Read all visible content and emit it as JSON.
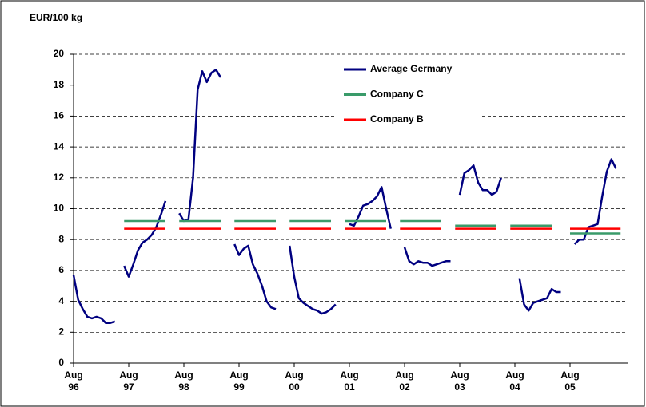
{
  "chart_data": {
    "type": "line",
    "title": "EUR/100 kg",
    "categories": [
      "Aug 96",
      null,
      null,
      null,
      null,
      null,
      null,
      null,
      null,
      null,
      null,
      null,
      "Aug 97",
      null,
      null,
      null,
      null,
      null,
      null,
      null,
      null,
      null,
      null,
      null,
      "Aug 98",
      null,
      null,
      null,
      null,
      null,
      null,
      null,
      null,
      null,
      null,
      null,
      "Aug 99",
      null,
      null,
      null,
      null,
      null,
      null,
      null,
      null,
      null,
      null,
      null,
      "Aug 00",
      null,
      null,
      null,
      null,
      null,
      null,
      null,
      null,
      null,
      null,
      null,
      "Aug 01",
      null,
      null,
      null,
      null,
      null,
      null,
      null,
      null,
      null,
      null,
      null,
      "Aug 02",
      null,
      null,
      null,
      null,
      null,
      null,
      null,
      null,
      null,
      null,
      null,
      "Aug 03",
      null,
      null,
      null,
      null,
      null,
      null,
      null,
      null,
      null,
      null,
      null,
      "Aug 04",
      null,
      null,
      null,
      null,
      null,
      null,
      null,
      null,
      null,
      null,
      null,
      "Aug 05",
      null,
      null,
      null,
      null,
      null,
      null,
      null,
      null,
      null,
      null,
      null
    ],
    "series": [
      {
        "name": "Average Germany",
        "color": "#000080",
        "values": [
          5.7,
          4.1,
          3.5,
          3.0,
          2.9,
          3.0,
          2.9,
          2.6,
          2.6,
          2.7,
          null,
          6.3,
          5.6,
          6.4,
          7.3,
          7.8,
          8.0,
          8.3,
          8.8,
          9.6,
          10.5,
          null,
          null,
          9.7,
          9.2,
          9.3,
          12.0,
          17.7,
          18.9,
          18.2,
          18.8,
          19.0,
          18.5,
          null,
          null,
          7.7,
          7.0,
          7.4,
          7.6,
          6.4,
          5.8,
          5.0,
          4.0,
          3.6,
          3.5,
          null,
          null,
          7.6,
          5.6,
          4.2,
          3.9,
          3.7,
          3.5,
          3.4,
          3.2,
          3.3,
          3.5,
          3.8,
          null,
          null,
          9.0,
          8.9,
          9.5,
          10.2,
          10.3,
          10.5,
          10.8,
          11.4,
          10.0,
          8.7,
          null,
          null,
          7.5,
          6.6,
          6.4,
          6.6,
          6.5,
          6.5,
          6.3,
          6.4,
          6.5,
          6.6,
          6.6,
          null,
          10.9,
          12.3,
          12.5,
          12.8,
          11.7,
          11.2,
          11.2,
          10.9,
          11.1,
          12.0,
          null,
          null,
          null,
          5.5,
          3.8,
          3.4,
          3.9,
          4.0,
          4.1,
          4.2,
          4.8,
          4.6,
          4.6,
          null,
          null,
          7.7,
          8.0,
          8.0,
          8.8,
          8.9,
          9.0,
          10.8,
          12.4,
          13.2,
          12.6,
          null
        ]
      },
      {
        "name": "Company C",
        "color": "#3a9b6a",
        "values": [
          null,
          null,
          null,
          null,
          null,
          null,
          null,
          null,
          null,
          null,
          null,
          9.2,
          9.2,
          9.2,
          9.2,
          9.2,
          9.2,
          9.2,
          9.2,
          9.2,
          9.2,
          null,
          null,
          9.2,
          9.2,
          9.2,
          9.2,
          9.2,
          9.2,
          9.2,
          9.2,
          9.2,
          9.2,
          null,
          null,
          9.2,
          9.2,
          9.2,
          9.2,
          9.2,
          9.2,
          9.2,
          9.2,
          9.2,
          9.2,
          null,
          null,
          9.2,
          9.2,
          9.2,
          9.2,
          9.2,
          9.2,
          9.2,
          9.2,
          9.2,
          9.2,
          null,
          null,
          9.2,
          9.2,
          9.2,
          9.2,
          9.2,
          9.2,
          9.2,
          9.2,
          9.2,
          9.2,
          null,
          null,
          9.2,
          9.2,
          9.2,
          9.2,
          9.2,
          9.2,
          9.2,
          9.2,
          9.2,
          9.2,
          null,
          null,
          8.9,
          8.9,
          8.9,
          8.9,
          8.9,
          8.9,
          8.9,
          8.9,
          8.9,
          8.9,
          null,
          null,
          8.9,
          8.9,
          8.9,
          8.9,
          8.9,
          8.9,
          8.9,
          8.9,
          8.9,
          8.9,
          null,
          null,
          null,
          8.4,
          8.4,
          8.4,
          8.4,
          8.4,
          8.4,
          8.4,
          8.4,
          8.4,
          8.4,
          8.4,
          8.4
        ]
      },
      {
        "name": "Company B",
        "color": "#ff0000",
        "values": [
          null,
          null,
          null,
          null,
          null,
          null,
          null,
          null,
          null,
          null,
          null,
          8.7,
          8.7,
          8.7,
          8.7,
          8.7,
          8.7,
          8.7,
          8.7,
          8.7,
          8.7,
          null,
          null,
          8.7,
          8.7,
          8.7,
          8.7,
          8.7,
          8.7,
          8.7,
          8.7,
          8.7,
          8.7,
          null,
          null,
          8.7,
          8.7,
          8.7,
          8.7,
          8.7,
          8.7,
          8.7,
          8.7,
          8.7,
          8.7,
          null,
          null,
          8.7,
          8.7,
          8.7,
          8.7,
          8.7,
          8.7,
          8.7,
          8.7,
          8.7,
          8.7,
          null,
          null,
          8.7,
          8.7,
          8.7,
          8.7,
          8.7,
          8.7,
          8.7,
          8.7,
          8.7,
          8.7,
          null,
          null,
          8.7,
          8.7,
          8.7,
          8.7,
          8.7,
          8.7,
          8.7,
          8.7,
          8.7,
          8.7,
          null,
          null,
          8.7,
          8.7,
          8.7,
          8.7,
          8.7,
          8.7,
          8.7,
          8.7,
          8.7,
          8.7,
          null,
          null,
          8.7,
          8.7,
          8.7,
          8.7,
          8.7,
          8.7,
          8.7,
          8.7,
          8.7,
          8.7,
          null,
          null,
          null,
          8.7,
          8.7,
          8.7,
          8.7,
          8.7,
          8.7,
          8.7,
          8.7,
          8.7,
          8.7,
          8.7,
          8.7
        ]
      }
    ],
    "ylim": [
      0,
      20
    ],
    "yticks": [
      0,
      2,
      4,
      6,
      8,
      10,
      12,
      14,
      16,
      18,
      20
    ],
    "grid": true
  }
}
